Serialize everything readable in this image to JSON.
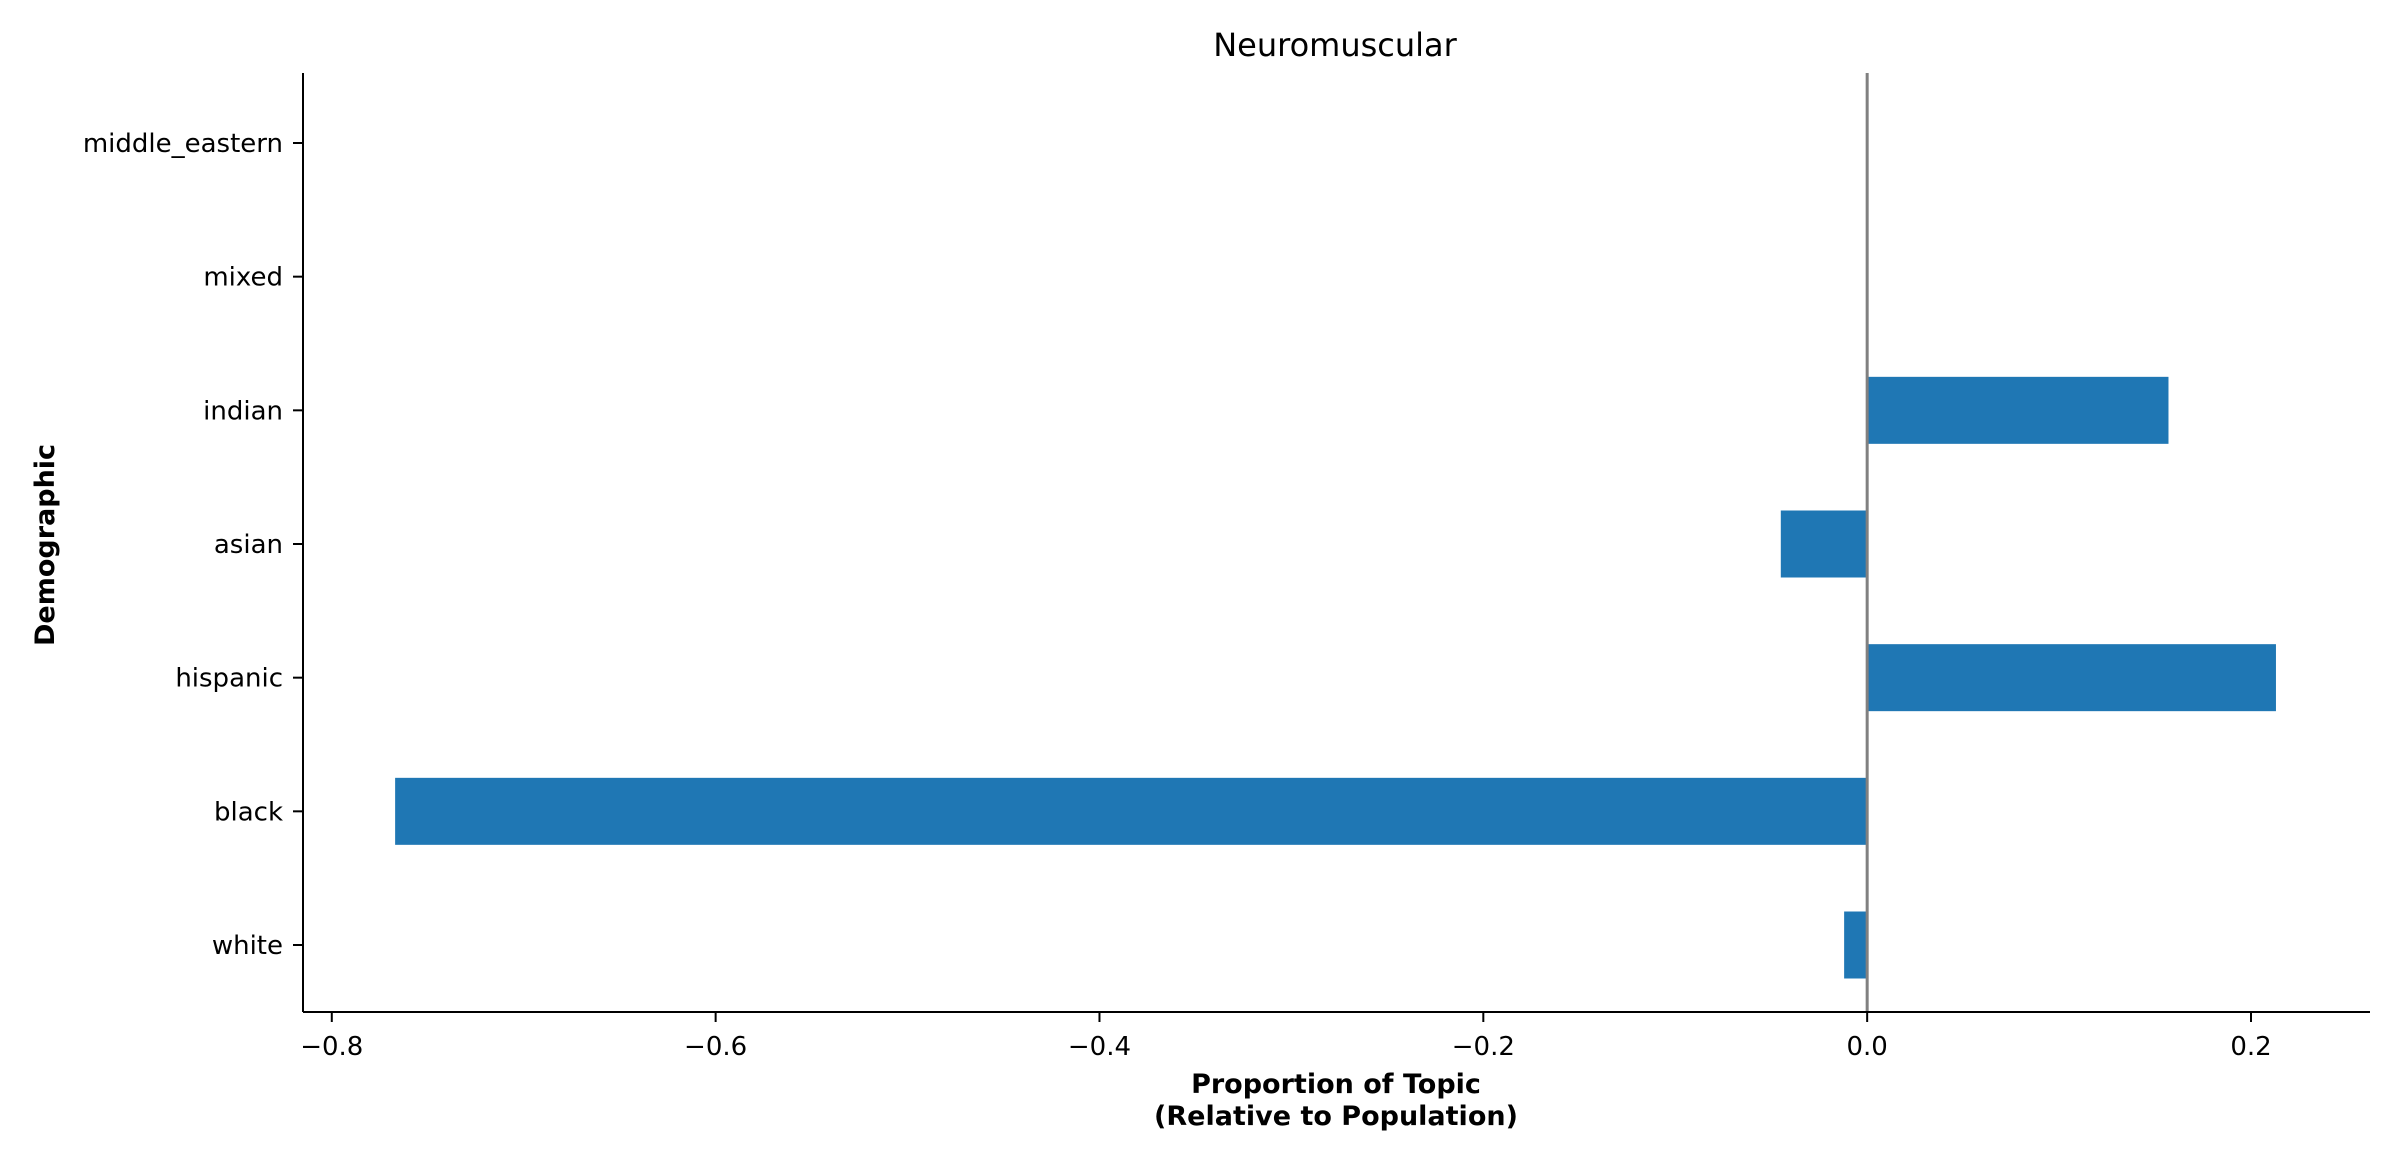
{
  "chart_data": {
    "type": "bar",
    "orientation": "horizontal",
    "title": "Neuromuscular",
    "xlabel_line1": "Proportion of Topic",
    "xlabel_line2": "(Relative to Population)",
    "ylabel": "Demographic",
    "categories": [
      "white",
      "black",
      "hispanic",
      "asian",
      "indian",
      "mixed",
      "middle_eastern"
    ],
    "values": [
      -0.012,
      -0.767,
      0.213,
      -0.045,
      0.157,
      null,
      null
    ],
    "xlim": [
      -0.815,
      0.262
    ],
    "xticks": [
      -0.8,
      -0.6,
      -0.4,
      -0.2,
      0.0,
      0.2
    ],
    "xtick_labels": [
      "−0.8",
      "−0.6",
      "−0.4",
      "−0.2",
      "0.0",
      "0.2"
    ],
    "reference_line_x": 0.0,
    "bar_color": "#1f77b4",
    "reference_line_color": "#808080",
    "grid": false,
    "legend": "none"
  }
}
